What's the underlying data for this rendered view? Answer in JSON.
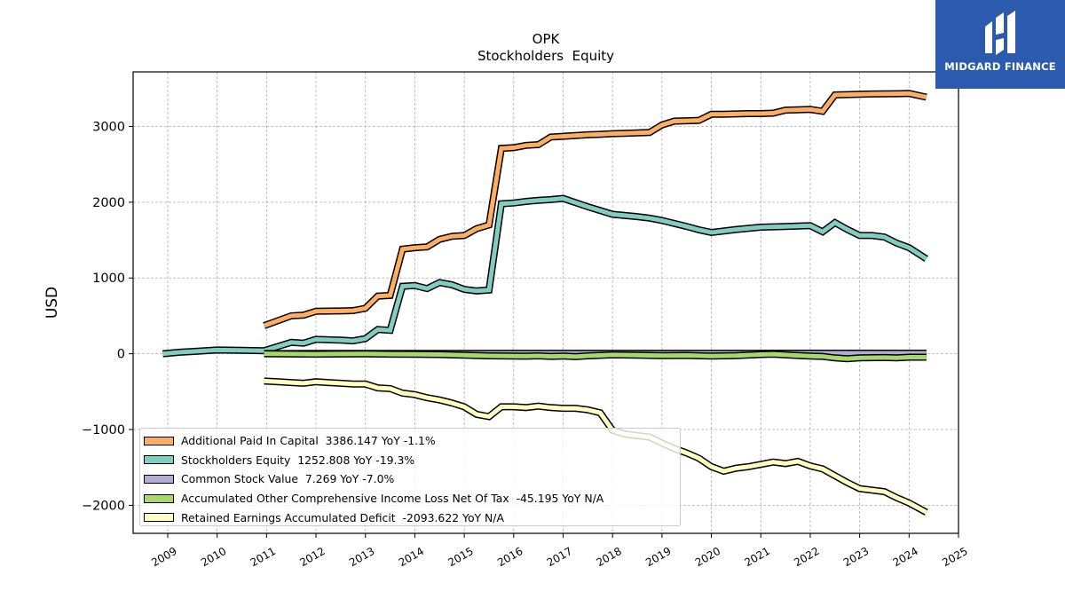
{
  "logo": {
    "name": "MIDGARD FINANCE",
    "color": "#2b5aae"
  },
  "chart_data": {
    "type": "line",
    "title": "OPK",
    "subtitle": "Stockholders  Equity",
    "ylabel": "USD",
    "xlabel": "",
    "xlim": [
      2008.3,
      2025.0
    ],
    "ylim": [
      -2370,
      3720
    ],
    "yticks": [
      -2000,
      -1000,
      0,
      1000,
      2000,
      3000
    ],
    "ytick_labels": [
      "−2000",
      "−1000",
      "0",
      "1000",
      "2000",
      "3000"
    ],
    "xticks": [
      2009,
      2010,
      2011,
      2012,
      2013,
      2014,
      2015,
      2016,
      2017,
      2018,
      2019,
      2020,
      2021,
      2022,
      2023,
      2024,
      2025
    ],
    "xtick_labels": [
      "2009",
      "2010",
      "2011",
      "2012",
      "2013",
      "2014",
      "2015",
      "2016",
      "2017",
      "2018",
      "2019",
      "2020",
      "2021",
      "2022",
      "2023",
      "2024",
      "2025"
    ],
    "grid": true,
    "legend_position": "lower-left",
    "series": [
      {
        "name": "Additional Paid In Capital",
        "legend_label": "Additional Paid In Capital  3386.147 YoY -1.1%",
        "color": "#fdae61",
        "x": [
          2010.95,
          2011.5,
          2011.75,
          2012.0,
          2012.5,
          2012.75,
          2013.0,
          2013.25,
          2013.5,
          2013.75,
          2014.0,
          2014.25,
          2014.5,
          2014.75,
          2015.0,
          2015.25,
          2015.5,
          2015.75,
          2016.0,
          2016.25,
          2016.5,
          2016.75,
          2017.0,
          2017.25,
          2017.5,
          2017.75,
          2018.0,
          2018.25,
          2018.5,
          2018.75,
          2019.0,
          2019.25,
          2019.5,
          2019.75,
          2020.0,
          2020.25,
          2020.5,
          2020.75,
          2021.0,
          2021.25,
          2021.5,
          2021.75,
          2022.0,
          2022.25,
          2022.5,
          2022.75,
          2023.0,
          2023.25,
          2023.5,
          2023.75,
          2024.0,
          2024.35
        ],
        "values": [
          370,
          500,
          510,
          560,
          565,
          570,
          600,
          760,
          770,
          1380,
          1400,
          1410,
          1510,
          1550,
          1560,
          1650,
          1700,
          2710,
          2720,
          2750,
          2760,
          2860,
          2870,
          2880,
          2890,
          2895,
          2905,
          2910,
          2915,
          2920,
          3020,
          3070,
          3075,
          3080,
          3160,
          3160,
          3165,
          3170,
          3170,
          3175,
          3215,
          3220,
          3225,
          3200,
          3415,
          3420,
          3425,
          3428,
          3430,
          3432,
          3435,
          3386
        ]
      },
      {
        "name": "Stockholders Equity",
        "legend_label": "Stockholders Equity  1252.808 YoY -19.3%",
        "color": "#80cdc1",
        "x": [
          2008.9,
          2009.25,
          2009.5,
          2009.75,
          2010.0,
          2010.5,
          2010.95,
          2011.25,
          2011.5,
          2011.75,
          2012.0,
          2012.5,
          2012.75,
          2013.0,
          2013.25,
          2013.5,
          2013.75,
          2014.0,
          2014.25,
          2014.5,
          2014.75,
          2015.0,
          2015.25,
          2015.5,
          2015.75,
          2016.0,
          2016.25,
          2016.5,
          2016.75,
          2017.0,
          2017.5,
          2018.0,
          2018.5,
          2018.75,
          2019.0,
          2019.5,
          2019.75,
          2020.0,
          2020.5,
          2021.0,
          2021.5,
          2021.75,
          2022.0,
          2022.25,
          2022.5,
          2022.75,
          2023.0,
          2023.25,
          2023.5,
          2023.75,
          2024.0,
          2024.35
        ],
        "values": [
          0,
          20,
          30,
          40,
          50,
          45,
          40,
          100,
          150,
          140,
          190,
          180,
          170,
          200,
          320,
          310,
          890,
          900,
          860,
          940,
          910,
          850,
          830,
          840,
          1980,
          1990,
          2010,
          2025,
          2035,
          2050,
          1940,
          1840,
          1810,
          1790,
          1760,
          1680,
          1635,
          1600,
          1640,
          1670,
          1680,
          1685,
          1690,
          1610,
          1730,
          1640,
          1560,
          1560,
          1540,
          1460,
          1400,
          1252
        ]
      },
      {
        "name": "Common Stock Value",
        "legend_label": "Common Stock Value  7.269 YoY -7.0%",
        "color": "#b2abd2",
        "x": [
          2010.95,
          2011.5,
          2012.0,
          2013.0,
          2014.0,
          2015.0,
          2016.0,
          2017.0,
          2018.0,
          2019.0,
          2020.0,
          2021.0,
          2022.0,
          2023.0,
          2024.0,
          2024.35
        ],
        "values": [
          3,
          3,
          4,
          4,
          5,
          5,
          6,
          6,
          6,
          6,
          6,
          6,
          7,
          7,
          7,
          7
        ]
      },
      {
        "name": "Accumulated Other Comprehensive Income Loss Net Of Tax",
        "legend_label": "Accumulated Other Comprehensive Income Loss Net Of Tax  -45.195 YoY N/A",
        "color": "#a6d96a",
        "x": [
          2010.95,
          2011.5,
          2012.0,
          2012.5,
          2013.0,
          2013.5,
          2014.0,
          2014.5,
          2015.0,
          2015.5,
          2016.0,
          2016.25,
          2016.5,
          2016.75,
          2017.0,
          2017.25,
          2017.5,
          2018.0,
          2018.5,
          2019.0,
          2019.5,
          2020.0,
          2020.5,
          2021.0,
          2021.25,
          2021.5,
          2022.0,
          2022.25,
          2022.5,
          2022.75,
          2023.0,
          2023.5,
          2023.75,
          2024.0,
          2024.35
        ],
        "values": [
          0,
          -3,
          -5,
          -3,
          -2,
          -5,
          -8,
          -10,
          -20,
          -28,
          -30,
          -32,
          -28,
          -35,
          -30,
          -38,
          -28,
          -15,
          -20,
          -25,
          -22,
          -30,
          -25,
          -10,
          -5,
          -15,
          -30,
          -35,
          -55,
          -65,
          -55,
          -50,
          -55,
          -45,
          -45
        ]
      },
      {
        "name": "Retained Earnings Accumulated Deficit",
        "legend_label": "Retained Earnings Accumulated Deficit  -2093.622 YoY N/A",
        "color": "#ffffbf",
        "x": [
          2010.95,
          2011.25,
          2011.5,
          2011.75,
          2012.0,
          2012.25,
          2012.5,
          2012.75,
          2013.0,
          2013.25,
          2013.5,
          2013.75,
          2014.0,
          2014.25,
          2014.5,
          2014.75,
          2015.0,
          2015.25,
          2015.5,
          2015.75,
          2016.0,
          2016.25,
          2016.5,
          2016.75,
          2017.0,
          2017.25,
          2017.5,
          2017.75,
          2018.0,
          2018.25,
          2018.5,
          2018.75,
          2019.0,
          2019.25,
          2019.5,
          2019.75,
          2020.0,
          2020.25,
          2020.5,
          2020.75,
          2021.0,
          2021.25,
          2021.5,
          2021.75,
          2022.0,
          2022.25,
          2022.5,
          2022.75,
          2023.0,
          2023.5,
          2023.75,
          2024.0,
          2024.35
        ],
        "values": [
          -360,
          -370,
          -380,
          -390,
          -370,
          -380,
          -390,
          -400,
          -400,
          -450,
          -460,
          -520,
          -540,
          -580,
          -610,
          -650,
          -700,
          -800,
          -830,
          -700,
          -700,
          -710,
          -690,
          -710,
          -720,
          -720,
          -740,
          -780,
          -1010,
          -1060,
          -1080,
          -1100,
          -1180,
          -1250,
          -1310,
          -1380,
          -1490,
          -1550,
          -1510,
          -1490,
          -1460,
          -1430,
          -1450,
          -1420,
          -1480,
          -1520,
          -1610,
          -1700,
          -1780,
          -1820,
          -1900,
          -1970,
          -2093
        ]
      }
    ]
  }
}
